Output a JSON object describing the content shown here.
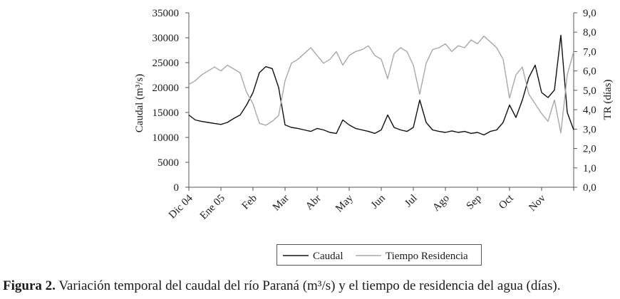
{
  "figure": {
    "caption_bold": "Figura 2.",
    "caption_text": "Variación temporal del caudal del río Paraná (m³/s) y el tiempo de residencia del agua (días)."
  },
  "chart_data": {
    "type": "line",
    "ylabel_left": "Caudal (m³/s)",
    "ylabel_right": "TR (días)",
    "xlabel": "",
    "ylim_left": [
      0,
      35000
    ],
    "ylim_right": [
      0.0,
      9.0
    ],
    "left_ticks": [
      "0",
      "5000",
      "10000",
      "15000",
      "20000",
      "25000",
      "30000",
      "35000"
    ],
    "right_ticks": [
      "0,0",
      "1,0",
      "2,0",
      "3,0",
      "4,0",
      "5,0",
      "6,0",
      "7,0",
      "8,0",
      "9,0"
    ],
    "x_tick_labels": [
      "Dic 04",
      "Ene 05",
      "Feb",
      "Mar",
      "Abr",
      "May",
      "Jun",
      "Jul",
      "Ago",
      "Sep",
      "Oct",
      "Nov"
    ],
    "x_range_months": [
      0,
      12
    ],
    "grid": false,
    "legend_position": "bottom",
    "series": [
      {
        "name": "Caudal",
        "axis": "left",
        "color": "#111111",
        "x": [
          0,
          0.2,
          0.4,
          0.6,
          0.8,
          1.0,
          1.2,
          1.4,
          1.6,
          1.8,
          2.0,
          2.2,
          2.4,
          2.6,
          2.8,
          3.0,
          3.2,
          3.4,
          3.6,
          3.8,
          4.0,
          4.2,
          4.4,
          4.6,
          4.8,
          5.0,
          5.2,
          5.4,
          5.6,
          5.8,
          6.0,
          6.2,
          6.4,
          6.6,
          6.8,
          7.0,
          7.2,
          7.4,
          7.6,
          7.8,
          8.0,
          8.2,
          8.4,
          8.6,
          8.8,
          9.0,
          9.2,
          9.4,
          9.6,
          9.8,
          10.0,
          10.2,
          10.4,
          10.6,
          10.8,
          11.0,
          11.2,
          11.4,
          11.6,
          11.8,
          12.0
        ],
        "y": [
          14500,
          13500,
          13200,
          13000,
          12800,
          12600,
          13000,
          13800,
          14500,
          16500,
          19000,
          23000,
          24200,
          23800,
          20000,
          12500,
          12000,
          11800,
          11500,
          11200,
          11800,
          11500,
          11000,
          10800,
          13500,
          12500,
          11800,
          11500,
          11200,
          10800,
          11500,
          14500,
          12000,
          11500,
          11200,
          12000,
          17500,
          13000,
          11500,
          11200,
          11000,
          11300,
          11000,
          11200,
          10800,
          11000,
          10500,
          11200,
          11500,
          13000,
          16500,
          14000,
          17500,
          22000,
          24500,
          19000,
          18000,
          19500,
          30500,
          15000,
          11500
        ]
      },
      {
        "name": "Tiempo Residencia",
        "axis": "right",
        "color": "#a8a8a8",
        "x": [
          0,
          0.2,
          0.4,
          0.6,
          0.8,
          1.0,
          1.2,
          1.4,
          1.6,
          1.8,
          2.0,
          2.2,
          2.4,
          2.6,
          2.8,
          3.0,
          3.2,
          3.4,
          3.6,
          3.8,
          4.0,
          4.2,
          4.4,
          4.6,
          4.8,
          5.0,
          5.2,
          5.4,
          5.6,
          5.8,
          6.0,
          6.2,
          6.4,
          6.6,
          6.8,
          7.0,
          7.2,
          7.4,
          7.6,
          7.8,
          8.0,
          8.2,
          8.4,
          8.6,
          8.8,
          9.0,
          9.2,
          9.4,
          9.6,
          9.8,
          10.0,
          10.2,
          10.4,
          10.6,
          10.8,
          11.0,
          11.2,
          11.4,
          11.6,
          11.8,
          12.0
        ],
        "y": [
          5.3,
          5.5,
          5.8,
          6.0,
          6.2,
          6.0,
          6.3,
          6.1,
          5.9,
          4.9,
          4.3,
          3.3,
          3.2,
          3.4,
          3.7,
          5.5,
          6.4,
          6.6,
          6.9,
          7.2,
          6.8,
          6.4,
          6.6,
          7.0,
          6.3,
          6.8,
          7.0,
          7.1,
          7.3,
          6.8,
          6.6,
          5.6,
          6.9,
          7.2,
          7.0,
          6.3,
          4.8,
          6.4,
          7.1,
          7.2,
          7.4,
          7.0,
          7.3,
          7.2,
          7.6,
          7.4,
          7.8,
          7.5,
          7.2,
          6.6,
          4.6,
          5.8,
          6.2,
          4.8,
          4.3,
          3.8,
          3.4,
          4.5,
          2.8,
          5.8,
          7.0
        ]
      }
    ]
  }
}
